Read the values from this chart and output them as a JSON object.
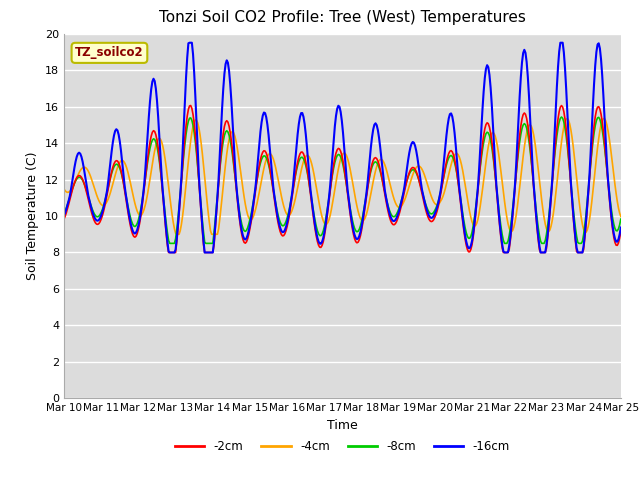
{
  "title": "Tonzi Soil CO2 Profile: Tree (West) Temperatures",
  "xlabel": "Time",
  "ylabel": "Soil Temperature (C)",
  "ylim": [
    0,
    20
  ],
  "yticks": [
    0,
    2,
    4,
    6,
    8,
    10,
    12,
    14,
    16,
    18,
    20
  ],
  "bg_color": "#dcdcdc",
  "fig_color": "#ffffff",
  "legend_label": "TZ_soilco2",
  "legend_text_color": "#8b0000",
  "legend_box_color": "#ffffcc",
  "series_labels": [
    "-2cm",
    "-4cm",
    "-8cm",
    "-16cm"
  ],
  "series_colors": [
    "#ff0000",
    "#ffa500",
    "#00cc00",
    "#0000ff"
  ],
  "x_tick_labels": [
    "Mar 10",
    "Mar 11",
    "Mar 12",
    "Mar 13",
    "Mar 14",
    "Mar 15",
    "Mar 16",
    "Mar 17",
    "Mar 18",
    "Mar 19",
    "Mar 20",
    "Mar 21",
    "Mar 22",
    "Mar 23",
    "Mar 24",
    "Mar 25"
  ],
  "n_points": 480
}
